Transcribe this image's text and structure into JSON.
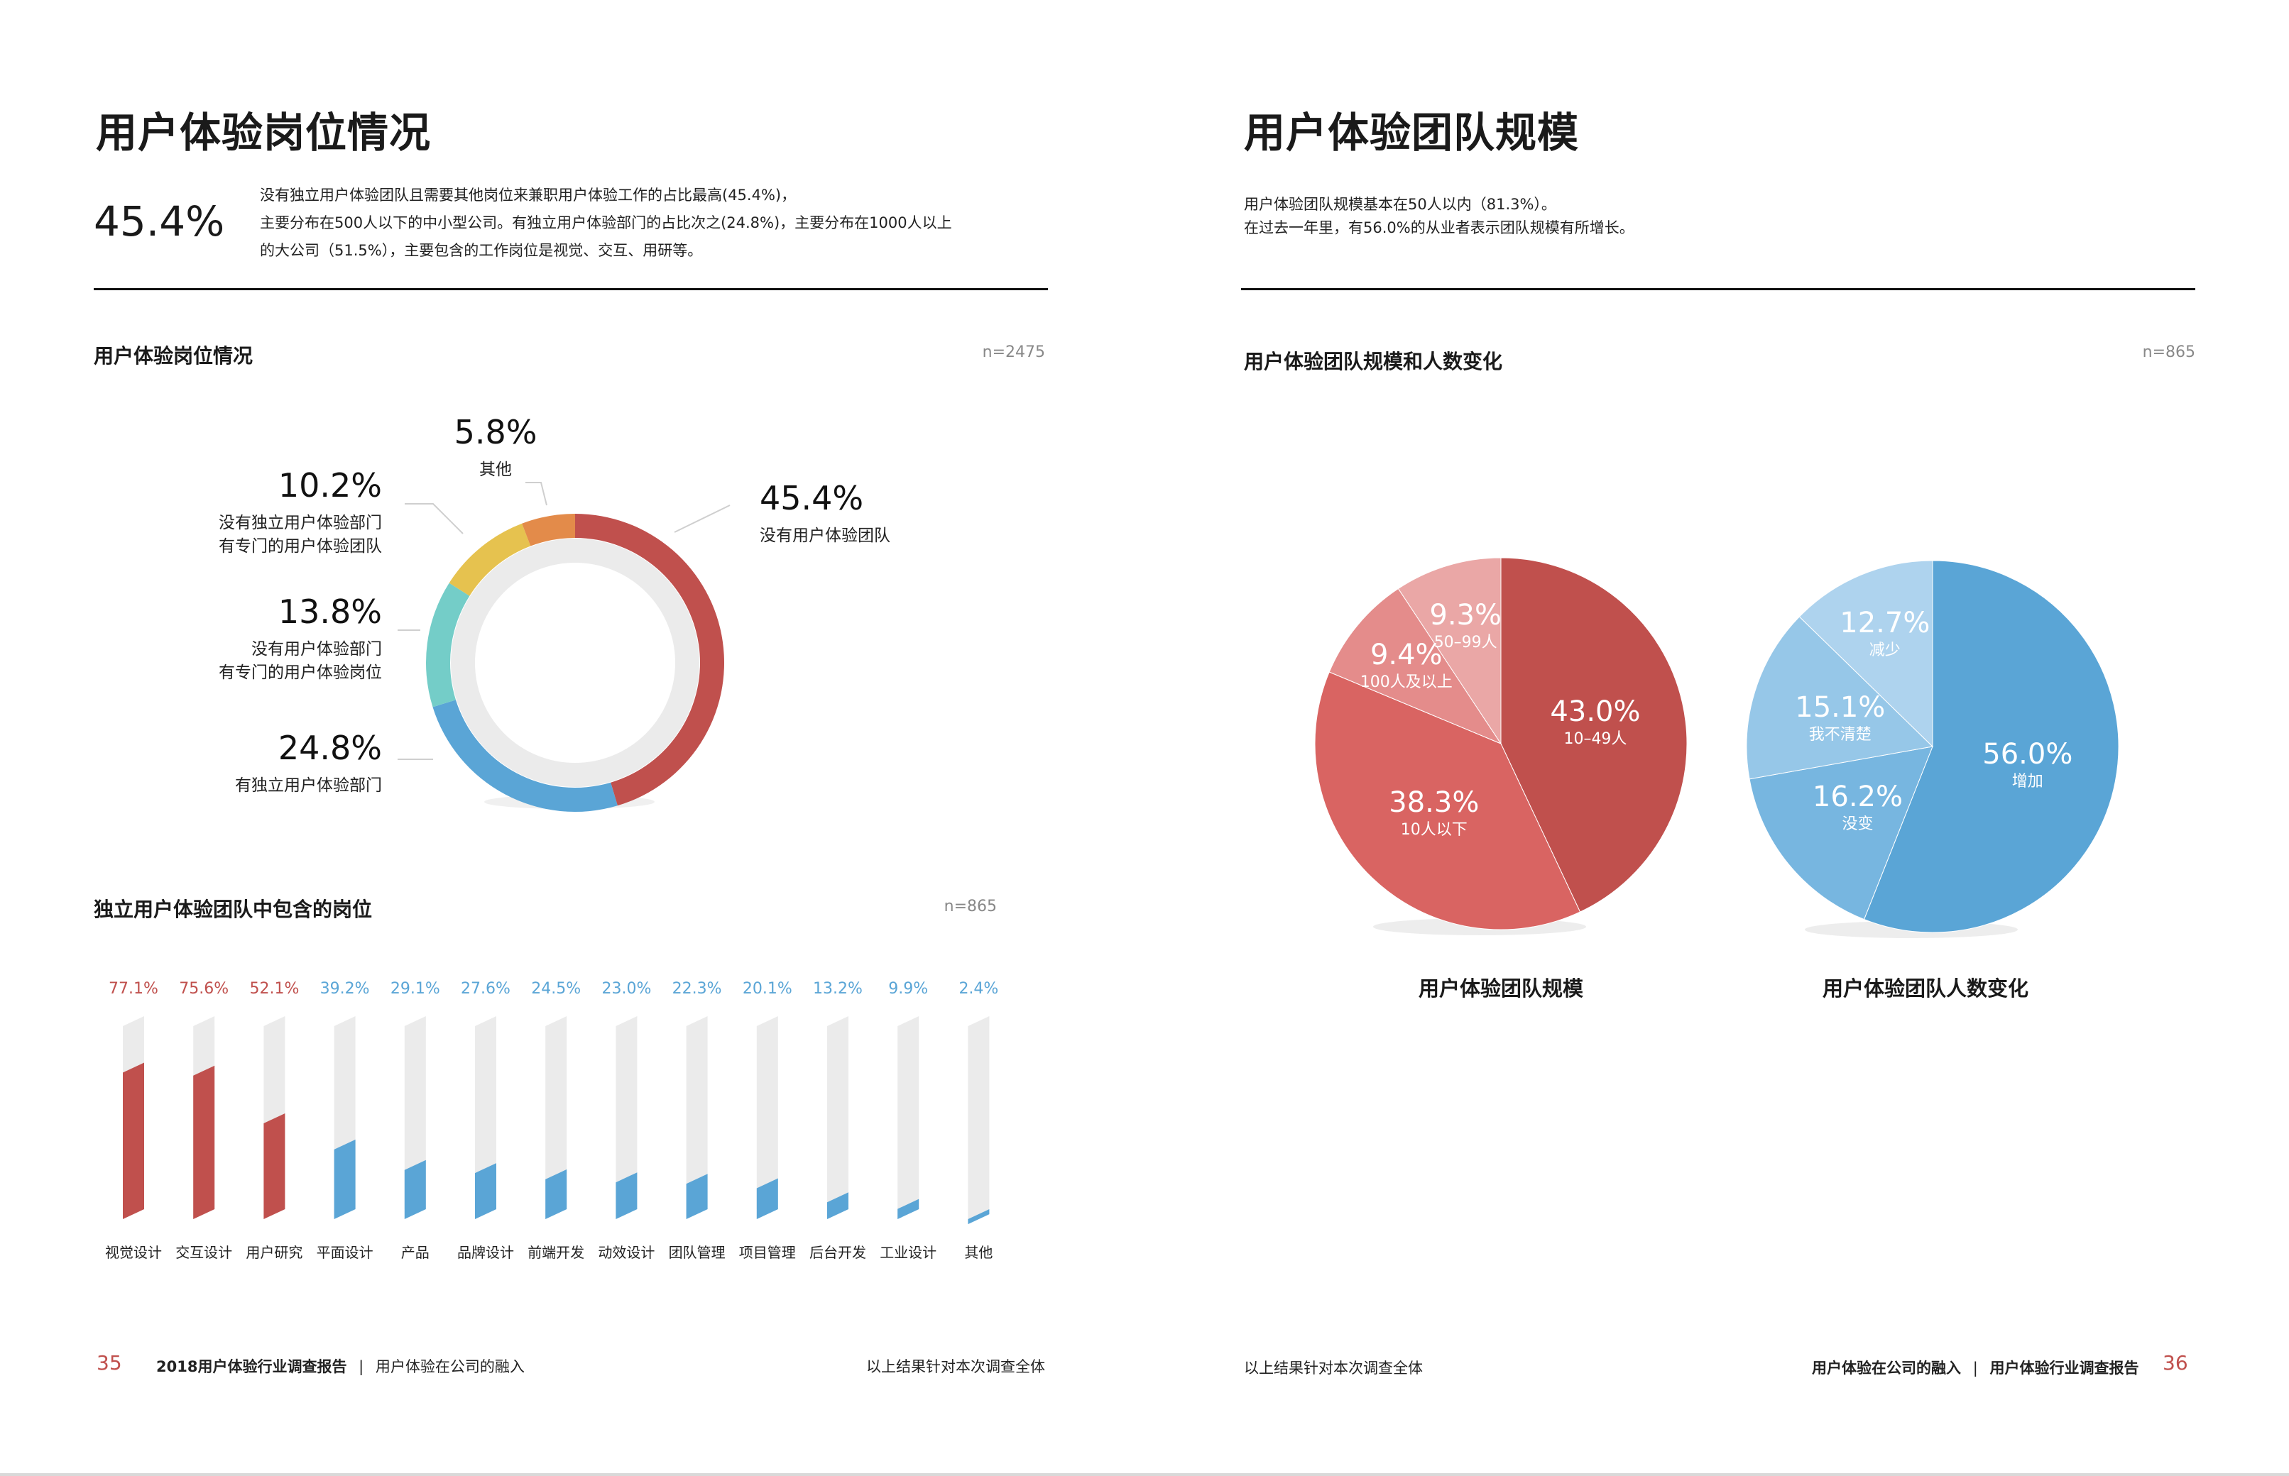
{
  "left": {
    "title": "用户体验岗位情况",
    "headline_pct": "45.4%",
    "summary_lines": [
      "没有独立用户体验团队且需要其他岗位来兼职用户体验工作的占比最高(45.4%)，",
      "主要分布在500人以下的中小型公司。有独立用户体验部门的占比次之(24.8%)，主要分布在1000人以上",
      "的大公司（51.5%），主要包含的工作岗位是视觉、交互、用研等。"
    ],
    "donut_section_title": "用户体验岗位情况",
    "donut_n": "n=2475",
    "bar_section_title": "独立用户体验团队中包含的岗位",
    "bar_n": "n=865",
    "footer": {
      "page": "35",
      "report": "2018用户体验行业调查报告",
      "divider": "|",
      "chapter": "用户体验在公司的融入",
      "note": "以上结果针对本次调查全体"
    }
  },
  "right": {
    "title": "用户体验团队规模",
    "summary_lines": [
      "用户体验团队规模基本在50人以内（81.3%）。",
      "在过去一年里，有56.0%的从业者表示团队规模有所增长。"
    ],
    "section_title": "用户体验团队规模和人数变化",
    "n": "n=865",
    "footer": {
      "note": "以上结果针对本次调查全体",
      "chapter": "用户体验在公司的融入",
      "divider": "|",
      "report": "用户体验行业调查报告",
      "page": "36"
    }
  },
  "colors": {
    "red": "#c0504d",
    "red_mid": "#d96462",
    "red_light": "#e48c8b",
    "red_pale": "#eaa7a6",
    "blue": "#5aa5d6",
    "blue_mid": "#77b6e0",
    "blue_light": "#96c7e8",
    "blue_pale": "#aed3ee",
    "teal": "#74cdc8",
    "yellow": "#e6c24f",
    "orange": "#e38b4a",
    "track": "#ebebeb"
  },
  "chart_data": [
    {
      "type": "pie",
      "title": "用户体验岗位情况",
      "style": "donut",
      "slices": [
        {
          "label": "没有用户体验团队",
          "value": 45.4,
          "label_text": "45.4%",
          "color": "#c0504d"
        },
        {
          "label": "有独立用户体验部门",
          "value": 24.8,
          "label_text": "24.8%",
          "color": "#5aa5d6"
        },
        {
          "label": "没有用户体验部门 有专门的用户体验岗位",
          "label_lines": [
            "没有用户体验部门",
            "有专门的用户体验岗位"
          ],
          "value": 13.8,
          "label_text": "13.8%",
          "color": "#74cdc8"
        },
        {
          "label": "没有独立用户体验部门 有专门的用户体验团队",
          "label_lines": [
            "没有独立用户体验部门",
            "有专门的用户体验团队"
          ],
          "value": 10.2,
          "label_text": "10.2%",
          "color": "#e6c24f"
        },
        {
          "label": "其他",
          "value": 5.8,
          "label_text": "5.8%",
          "color": "#e38b4a"
        }
      ]
    },
    {
      "type": "bar",
      "title": "独立用户体验团队中包含的岗位",
      "categories": [
        "视觉设计",
        "交互设计",
        "用户研究",
        "平面设计",
        "产品",
        "品牌设计",
        "前端开发",
        "动效设计",
        "团队管理",
        "项目管理",
        "后台开发",
        "工业设计",
        "其他"
      ],
      "values": [
        77.1,
        75.6,
        52.1,
        39.2,
        29.1,
        27.6,
        24.5,
        23.0,
        22.3,
        20.1,
        13.2,
        9.9,
        2.4
      ],
      "value_labels": [
        "77.1%",
        "75.6%",
        "52.1%",
        "39.2%",
        "29.1%",
        "27.6%",
        "24.5%",
        "23.0%",
        "22.3%",
        "20.1%",
        "13.2%",
        "9.9%",
        "2.4%"
      ],
      "highlight_top": 3,
      "ylim": [
        0,
        100
      ]
    },
    {
      "type": "pie",
      "title": "用户体验团队规模",
      "slices": [
        {
          "label": "10–49人",
          "value": 43.0,
          "label_text": "43.0%",
          "color": "#c0504d"
        },
        {
          "label": "10人以下",
          "value": 38.3,
          "label_text": "38.3%",
          "color": "#d96462"
        },
        {
          "label": "100人及以上",
          "value": 9.4,
          "label_text": "9.4%",
          "color": "#e48c8b"
        },
        {
          "label": "50–99人",
          "value": 9.3,
          "label_text": "9.3%",
          "color": "#eaa7a6"
        }
      ]
    },
    {
      "type": "pie",
      "title": "用户体验团队人数变化",
      "slices": [
        {
          "label": "增加",
          "value": 56.0,
          "label_text": "56.0%",
          "color": "#5aa5d6"
        },
        {
          "label": "没变",
          "value": 16.2,
          "label_text": "16.2%",
          "color": "#77b6e0"
        },
        {
          "label": "我不清楚",
          "value": 15.1,
          "label_text": "15.1%",
          "color": "#96c7e8"
        },
        {
          "label": "减少",
          "value": 12.7,
          "label_text": "12.7%",
          "color": "#aed3ee"
        }
      ]
    }
  ]
}
